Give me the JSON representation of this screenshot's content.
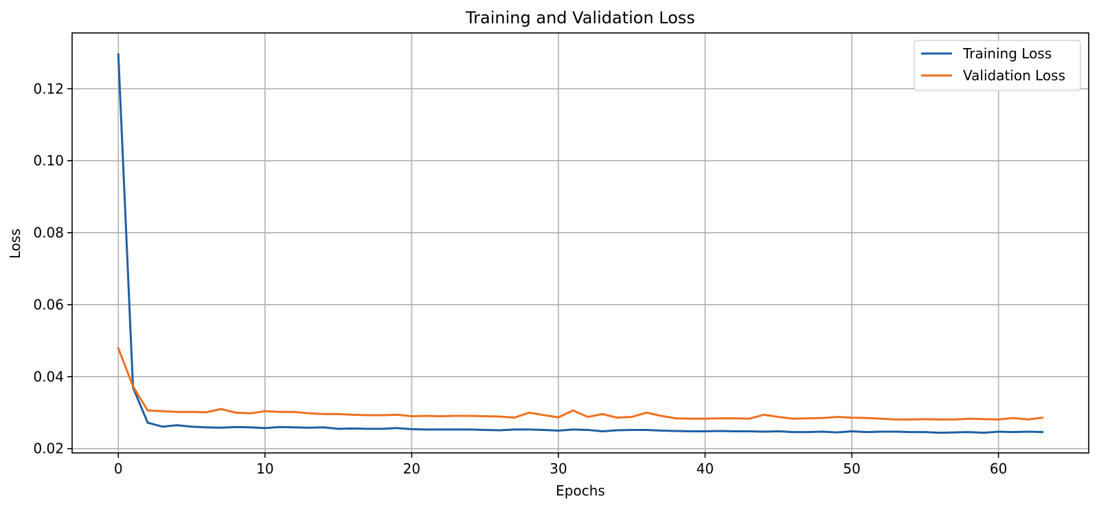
{
  "chart_data": {
    "type": "line",
    "title": "Training and Validation Loss",
    "xlabel": "Epochs",
    "ylabel": "Loss",
    "xlim": [
      -3.15,
      66.15
    ],
    "ylim": [
      0.0188,
      0.1355
    ],
    "xticks": [
      0,
      10,
      20,
      30,
      40,
      50,
      60
    ],
    "xtick_labels": [
      "0",
      "10",
      "20",
      "30",
      "40",
      "50",
      "60"
    ],
    "yticks": [
      0.02,
      0.04,
      0.06,
      0.08,
      0.1,
      0.12
    ],
    "ytick_labels": [
      "0.02",
      "0.04",
      "0.06",
      "0.08",
      "0.10",
      "0.12"
    ],
    "grid": true,
    "legend_position": "top-right",
    "x": [
      0,
      1,
      2,
      3,
      4,
      5,
      6,
      7,
      8,
      9,
      10,
      11,
      12,
      13,
      14,
      15,
      16,
      17,
      18,
      19,
      20,
      21,
      22,
      23,
      24,
      25,
      26,
      27,
      28,
      29,
      30,
      31,
      32,
      33,
      34,
      35,
      36,
      37,
      38,
      39,
      40,
      41,
      42,
      43,
      44,
      45,
      46,
      47,
      48,
      49,
      50,
      51,
      52,
      53,
      54,
      55,
      56,
      57,
      58,
      59,
      60,
      61,
      62,
      63
    ],
    "series": [
      {
        "name": "Training Loss",
        "color": "#1f5fa3",
        "values": [
          0.1295,
          0.037,
          0.0272,
          0.0261,
          0.0265,
          0.0261,
          0.0259,
          0.0258,
          0.026,
          0.0259,
          0.0257,
          0.026,
          0.0259,
          0.0258,
          0.0259,
          0.0255,
          0.0256,
          0.0255,
          0.0255,
          0.0257,
          0.0254,
          0.0253,
          0.0253,
          0.0253,
          0.0253,
          0.0252,
          0.0251,
          0.0253,
          0.0253,
          0.0252,
          0.025,
          0.0253,
          0.0252,
          0.0248,
          0.0251,
          0.0252,
          0.0252,
          0.025,
          0.0249,
          0.0248,
          0.0248,
          0.0249,
          0.0248,
          0.0248,
          0.0247,
          0.0248,
          0.0246,
          0.0246,
          0.0247,
          0.0245,
          0.0248,
          0.0246,
          0.0247,
          0.0247,
          0.0246,
          0.0246,
          0.0244,
          0.0245,
          0.0246,
          0.0244,
          0.0247,
          0.0246,
          0.0247,
          0.0246
        ]
      },
      {
        "name": "Validation Loss",
        "color": "#f07020",
        "values": [
          0.0479,
          0.0373,
          0.0306,
          0.0304,
          0.0302,
          0.0302,
          0.0301,
          0.031,
          0.03,
          0.0298,
          0.0304,
          0.0302,
          0.0302,
          0.0298,
          0.0296,
          0.0296,
          0.0294,
          0.0293,
          0.0293,
          0.0294,
          0.029,
          0.0291,
          0.029,
          0.0291,
          0.0291,
          0.029,
          0.0289,
          0.0286,
          0.03,
          0.0293,
          0.0287,
          0.0306,
          0.0288,
          0.0296,
          0.0286,
          0.0288,
          0.03,
          0.0291,
          0.0284,
          0.0283,
          0.0283,
          0.0284,
          0.0284,
          0.0283,
          0.0294,
          0.0288,
          0.0283,
          0.0284,
          0.0285,
          0.0288,
          0.0286,
          0.0285,
          0.0283,
          0.0281,
          0.0281,
          0.0282,
          0.0281,
          0.0281,
          0.0283,
          0.0282,
          0.0281,
          0.0285,
          0.0281,
          0.0286
        ]
      }
    ]
  }
}
